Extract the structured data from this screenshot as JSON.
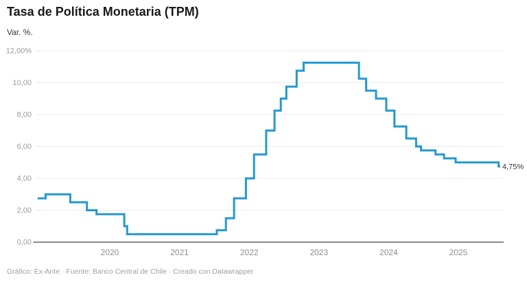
{
  "header": {
    "title": "Tasa de Política Monetaria (TPM)",
    "subtitle": "Var. %."
  },
  "footer": {
    "attribution": "Gráfico: Ex-Ante · Fuente: Banco Central de Chile · Creado con Datawrapper"
  },
  "colors": {
    "line": "#2499cf",
    "grid": "#ebebeb",
    "axis_baseline": "#8a8a8a",
    "y_tick_text": "#9b9b9b",
    "x_tick_text": "#8e8e8e",
    "end_label_text": "#333333"
  },
  "chart_data": {
    "type": "line",
    "line_style": "step-after",
    "title": "Tasa de Política Monetaria (TPM)",
    "xlabel": "",
    "ylabel": "Var. %.",
    "ylim": [
      0,
      12
    ],
    "x_domain_decimal_years": [
      2018.965,
      2025.6
    ],
    "grid": "horizontal",
    "legend_position": "none",
    "y_ticks": [
      {
        "label": "12,00%",
        "value": 12
      },
      {
        "label": "10,00",
        "value": 10
      },
      {
        "label": "8,00",
        "value": 8
      },
      {
        "label": "6,00",
        "value": 6
      },
      {
        "label": "4,00",
        "value": 4
      },
      {
        "label": "2,00",
        "value": 2
      },
      {
        "label": "0,00",
        "value": 0
      }
    ],
    "x_ticks": [
      {
        "label": "2020",
        "year": 2020
      },
      {
        "label": "2021",
        "year": 2021
      },
      {
        "label": "2022",
        "year": 2022
      },
      {
        "label": "2023",
        "year": 2023
      },
      {
        "label": "2024",
        "year": 2024
      },
      {
        "label": "2025",
        "year": 2025
      }
    ],
    "series": [
      {
        "name": "TPM",
        "unit": "%",
        "points": [
          {
            "date": "2019-01-01",
            "value": 2.75
          },
          {
            "date": "2019-01-30",
            "value": 3.0
          },
          {
            "date": "2019-06-07",
            "value": 2.5
          },
          {
            "date": "2019-09-03",
            "value": 2.0
          },
          {
            "date": "2019-10-23",
            "value": 1.75
          },
          {
            "date": "2020-03-16",
            "value": 1.0
          },
          {
            "date": "2020-03-31",
            "value": 0.5
          },
          {
            "date": "2021-07-14",
            "value": 0.75
          },
          {
            "date": "2021-08-31",
            "value": 1.5
          },
          {
            "date": "2021-10-13",
            "value": 2.75
          },
          {
            "date": "2021-12-14",
            "value": 4.0
          },
          {
            "date": "2022-01-26",
            "value": 5.5
          },
          {
            "date": "2022-03-29",
            "value": 7.0
          },
          {
            "date": "2022-05-12",
            "value": 8.25
          },
          {
            "date": "2022-06-14",
            "value": 9.0
          },
          {
            "date": "2022-07-13",
            "value": 9.75
          },
          {
            "date": "2022-09-06",
            "value": 10.75
          },
          {
            "date": "2022-10-12",
            "value": 11.25
          },
          {
            "date": "2023-07-28",
            "value": 10.25
          },
          {
            "date": "2023-09-05",
            "value": 9.5
          },
          {
            "date": "2023-10-26",
            "value": 9.0
          },
          {
            "date": "2023-12-19",
            "value": 8.25
          },
          {
            "date": "2024-01-31",
            "value": 7.25
          },
          {
            "date": "2024-04-02",
            "value": 6.5
          },
          {
            "date": "2024-05-23",
            "value": 6.0
          },
          {
            "date": "2024-06-18",
            "value": 5.75
          },
          {
            "date": "2024-09-03",
            "value": 5.5
          },
          {
            "date": "2024-10-17",
            "value": 5.25
          },
          {
            "date": "2024-12-17",
            "value": 5.0
          },
          {
            "date": "2025-07-29",
            "value": 4.75
          }
        ]
      }
    ],
    "end_label": "4,75%"
  }
}
